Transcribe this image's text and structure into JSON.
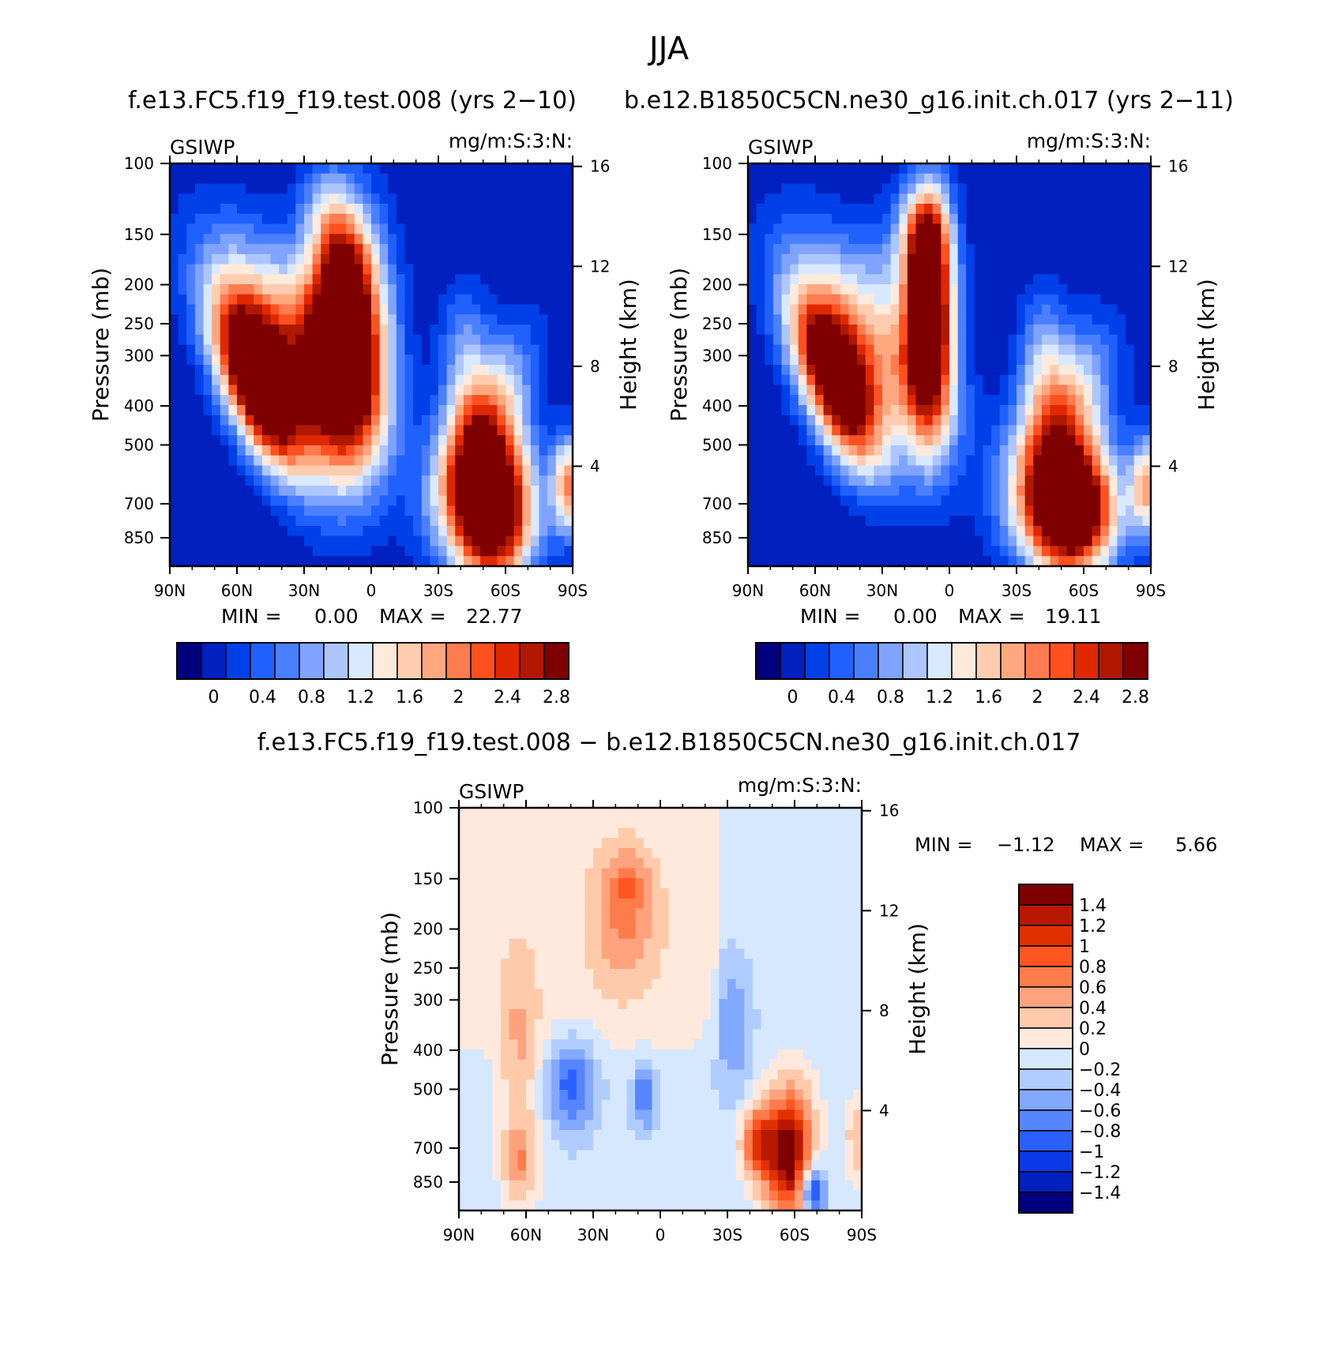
{
  "title": "JJA",
  "panel_titles": {
    "left": "f.e13.FC5.f19_f19.test.008 (yrs 2−10)",
    "right": "b.e12.B1850C5CN.ne30_g16.init.ch.017 (yrs 2−11)",
    "diff": "f.e13.FC5.f19_f19.test.008 − b.e12.B1850C5CN.ne30_g16.init.ch.017"
  },
  "chart_data": [
    {
      "type": "heatmap",
      "variable": "GSIWP",
      "units": "mg/m:S:3:N:",
      "xlabel": "",
      "ylabel": "Pressure (mb)",
      "ylabel_right": "Height (km)",
      "x_ticks": [
        "90N",
        "60N",
        "30N",
        "0",
        "30S",
        "60S",
        "90S"
      ],
      "y_ticks": [
        100,
        150,
        200,
        250,
        300,
        400,
        500,
        700,
        850
      ],
      "y_ticks_right": [
        16,
        12,
        8,
        4
      ],
      "ylim": [
        100,
        1000
      ],
      "min_label": "MIN =",
      "min_value": "0.00",
      "max_label": "MAX =",
      "max_value": "22.77",
      "colorbar_labels": [
        "0",
        "0.4",
        "0.8",
        "1.2",
        "1.6",
        "2",
        "2.4",
        "2.8"
      ],
      "colorbar_colors": [
        "#00007f",
        "#0020c0",
        "#0040e8",
        "#2060ff",
        "#4a80ff",
        "#7fa3ff",
        "#adc6ff",
        "#d9e9ff",
        "#ffeadc",
        "#ffccb0",
        "#ffa880",
        "#ff7b50",
        "#ff5020",
        "#e02800",
        "#b01800",
        "#7f0000"
      ]
    },
    {
      "type": "heatmap",
      "variable": "GSIWP",
      "units": "mg/m:S:3:N:",
      "xlabel": "",
      "ylabel": "Pressure (mb)",
      "ylabel_right": "Height (km)",
      "x_ticks": [
        "90N",
        "60N",
        "30N",
        "0",
        "30S",
        "60S",
        "90S"
      ],
      "y_ticks": [
        100,
        150,
        200,
        250,
        300,
        400,
        500,
        700,
        850
      ],
      "y_ticks_right": [
        16,
        12,
        8,
        4
      ],
      "ylim": [
        100,
        1000
      ],
      "min_label": "MIN =",
      "min_value": "0.00",
      "max_label": "MAX =",
      "max_value": "19.11",
      "colorbar_labels": [
        "0",
        "0.4",
        "0.8",
        "1.2",
        "1.6",
        "2",
        "2.4",
        "2.8"
      ],
      "colorbar_colors": [
        "#00007f",
        "#0020c0",
        "#0040e8",
        "#2060ff",
        "#4a80ff",
        "#7fa3ff",
        "#adc6ff",
        "#d9e9ff",
        "#ffeadc",
        "#ffccb0",
        "#ffa880",
        "#ff7b50",
        "#ff5020",
        "#e02800",
        "#b01800",
        "#7f0000"
      ]
    },
    {
      "type": "heatmap",
      "variable": "GSIWP",
      "units": "mg/m:S:3:N:",
      "xlabel": "",
      "ylabel": "Pressure (mb)",
      "ylabel_right": "Height (km)",
      "x_ticks": [
        "90N",
        "60N",
        "30N",
        "0",
        "30S",
        "60S",
        "90S"
      ],
      "y_ticks": [
        100,
        150,
        200,
        250,
        300,
        400,
        500,
        700,
        850
      ],
      "y_ticks_right": [
        16,
        12,
        8,
        4
      ],
      "ylim": [
        100,
        1000
      ],
      "min_label": "MIN =",
      "min_value": "−1.12",
      "max_label": "MAX =",
      "max_value": "5.66",
      "colorbar_labels": [
        "1.4",
        "1.2",
        "1",
        "0.8",
        "0.6",
        "0.4",
        "0.2",
        "0",
        "−0.2",
        "−0.4",
        "−0.6",
        "−0.8",
        "−1",
        "−1.2",
        "−1.4"
      ],
      "colorbar_colors": [
        "#7f0000",
        "#b81800",
        "#e03000",
        "#ff5520",
        "#ff7b4a",
        "#ffa27d",
        "#ffcaaa",
        "#ffe9dd",
        "#d6e8ff",
        "#b0ccff",
        "#82a8ff",
        "#5585ff",
        "#2a60ff",
        "#0a3ae8",
        "#0020c0",
        "#00007f"
      ]
    }
  ]
}
